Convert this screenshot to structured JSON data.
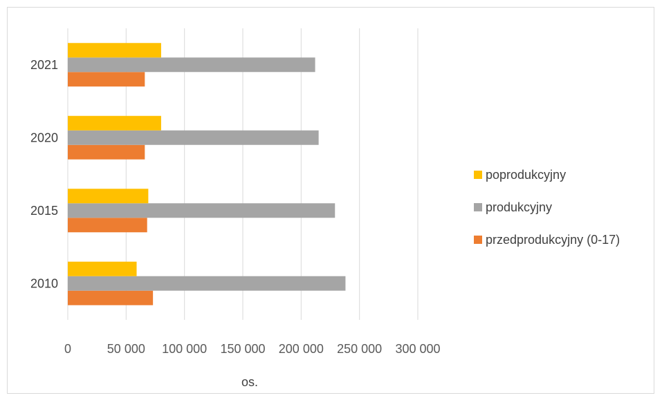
{
  "chart_data": {
    "type": "bar",
    "orientation": "horizontal",
    "categories": [
      "2010",
      "2015",
      "2020",
      "2021"
    ],
    "series": [
      {
        "name": "przedprodukcyjny (0-17)",
        "color": "#ED7D31",
        "values": [
          73000,
          68000,
          66000,
          66000
        ]
      },
      {
        "name": "produkcyjny",
        "color": "#A5A5A5",
        "values": [
          238000,
          229000,
          215000,
          212000
        ]
      },
      {
        "name": "poprodukcyjny",
        "color": "#FFC000",
        "values": [
          59000,
          69000,
          80000,
          80000
        ]
      }
    ],
    "xlabel": "os.",
    "xlim": [
      0,
      300000
    ],
    "xticks": [
      0,
      50000,
      100000,
      150000,
      200000,
      250000,
      300000
    ],
    "xtick_labels": [
      "0",
      "50 000",
      "100 000",
      "150 000",
      "200 000",
      "250 000",
      "300 000"
    ],
    "grid": "vertical",
    "legend_position": "right",
    "legend_order": [
      "poprodukcyjny",
      "produkcyjny",
      "przedprodukcyjny (0-17)"
    ]
  }
}
